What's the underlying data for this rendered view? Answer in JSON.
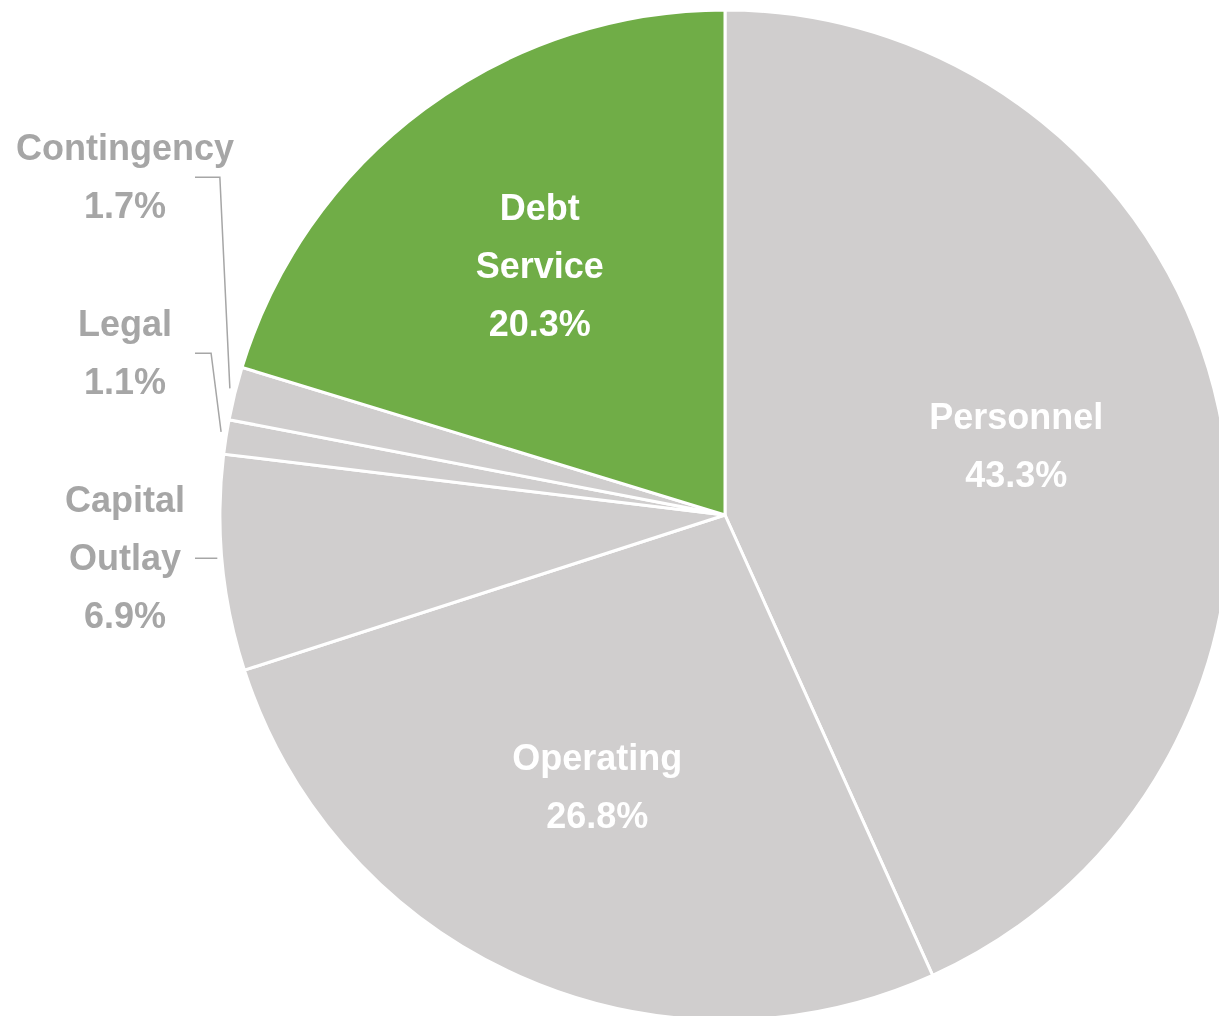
{
  "chart_data": {
    "type": "pie",
    "categories": [
      "Personnel",
      "Operating",
      "Capital Outlay",
      "Legal",
      "Contingency",
      "Debt Service"
    ],
    "values": [
      43.3,
      26.8,
      6.9,
      1.1,
      1.7,
      20.3
    ],
    "value_labels": [
      "43.3%",
      "26.8%",
      "6.9%",
      "1.1%",
      "1.7%",
      "20.3%"
    ],
    "colors": [
      "#d0cece",
      "#d0cece",
      "#d0cece",
      "#d0cece",
      "#d0cece",
      "#70ad47"
    ]
  }
}
